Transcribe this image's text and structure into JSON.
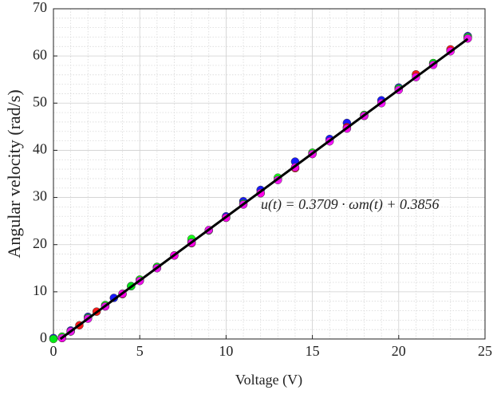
{
  "chart_data": {
    "type": "scatter",
    "xlabel": "Voltage (V)",
    "ylabel": "Angular velocity (rad/s)",
    "annotation": "u(t) = 0.3709 · ωm(t) + 0.3856",
    "xlim": [
      0,
      25
    ],
    "xticks": [
      0,
      5,
      10,
      15,
      20,
      25
    ],
    "ylim": [
      0,
      70
    ],
    "yticks": [
      0,
      10,
      20,
      30,
      40,
      50,
      60,
      70
    ],
    "grid": true,
    "series": [
      {
        "color": "#0000ff",
        "x": [
          0,
          1,
          2,
          3.5,
          4.5,
          6,
          8,
          10,
          11,
          12,
          14,
          16,
          17,
          19,
          20,
          22,
          24
        ],
        "values": [
          0.2,
          1.8,
          4.7,
          8.7,
          11.2,
          15.2,
          20.6,
          26,
          29.2,
          31.6,
          37.6,
          42.4,
          45.8,
          50.6,
          53.3,
          58.4,
          64.2
        ]
      },
      {
        "color": "#ff0000",
        "x": [
          0.5,
          1.5,
          2.5,
          3,
          4,
          5,
          7,
          8,
          10,
          12,
          14,
          15,
          17,
          18,
          21,
          23,
          24
        ],
        "values": [
          0.2,
          2.9,
          5.8,
          7.0,
          9.5,
          12.4,
          17.7,
          20.3,
          25.7,
          30.9,
          36.2,
          39.3,
          44.9,
          47.3,
          56.1,
          61.4,
          63.8
        ]
      },
      {
        "color": "#00ff00",
        "x": [
          0,
          0.5,
          1,
          2,
          3,
          4.5,
          5,
          6,
          8,
          9,
          11,
          13,
          15,
          18,
          20,
          22,
          24
        ],
        "values": [
          0,
          0.5,
          1.6,
          4.5,
          7.2,
          11.2,
          12.6,
          15.3,
          21.2,
          23.0,
          28.7,
          34.2,
          39.5,
          47.5,
          53.1,
          58.5,
          64.0
        ]
      },
      {
        "color": "#ff00ff",
        "x": [
          0.5,
          1,
          2,
          3,
          4,
          5,
          6,
          7,
          8,
          9,
          10,
          11,
          12,
          13,
          14,
          15,
          16,
          17,
          18,
          19,
          20,
          21,
          22,
          23,
          24
        ],
        "values": [
          0.2,
          1.6,
          4.3,
          6.9,
          9.6,
          12.3,
          15.0,
          17.7,
          20.4,
          23.1,
          25.7,
          28.5,
          30.9,
          33.7,
          36.4,
          39.2,
          41.9,
          44.6,
          47.3,
          50.0,
          52.8,
          55.5,
          58.1,
          61.0,
          63.7
        ]
      },
      {
        "type": "line",
        "color": "#000000",
        "x": [
          0.4,
          24
        ],
        "values": [
          0,
          63.6
        ]
      }
    ]
  }
}
